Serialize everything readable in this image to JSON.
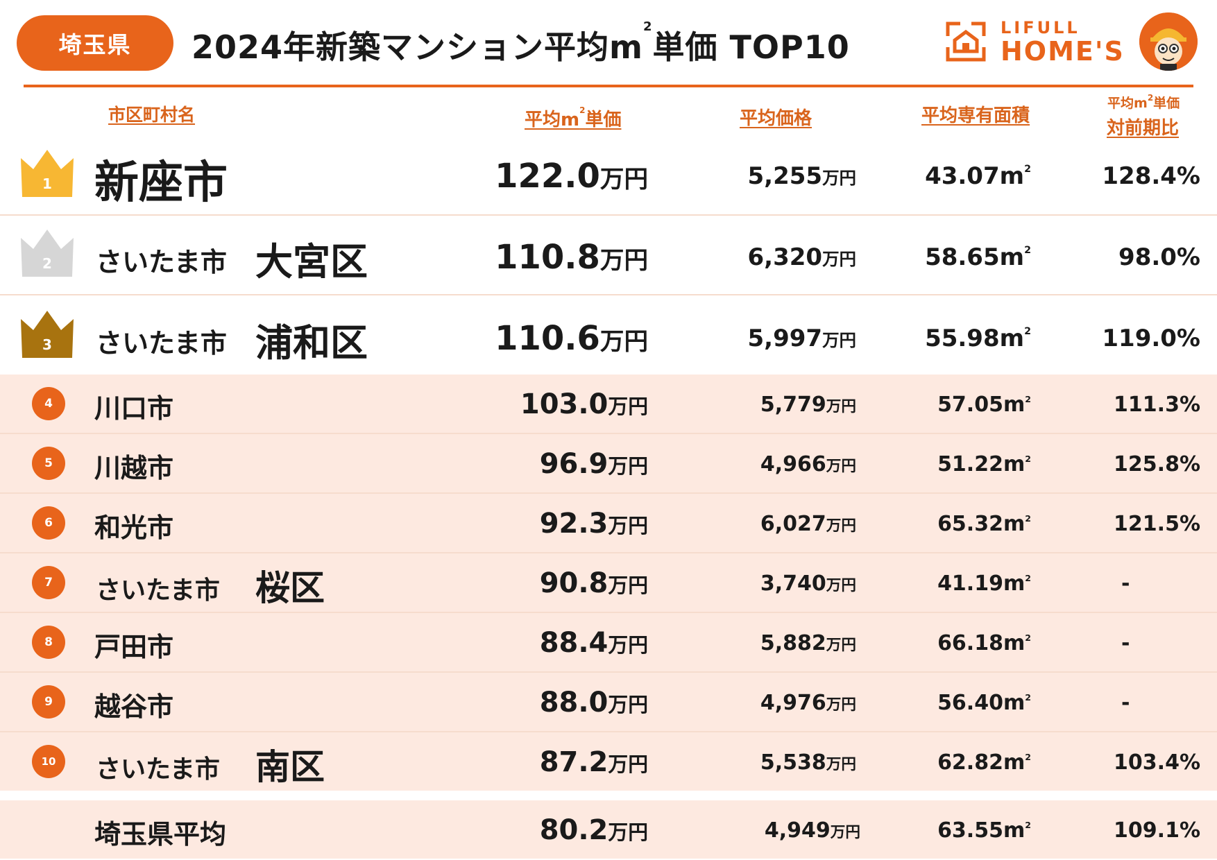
{
  "header": {
    "prefecture": "埼玉県",
    "title_main": "2024年新築マンション平均m",
    "title_sup": "2",
    "title_tail": "単価 TOP10",
    "logo_top": "LIFULL",
    "logo_bottom": "HOME'S"
  },
  "columns": {
    "name": "市区町村名",
    "price_per_sqm_pre": "平均m",
    "price_per_sqm_sup": "2",
    "price_per_sqm_post": "単価",
    "avg_price": "平均価格",
    "avg_area": "平均専有面積",
    "ratio_line1_pre": "平均m",
    "ratio_line1_sup": "2",
    "ratio_line1_post": "単価",
    "ratio_line2": "対前期比"
  },
  "units": {
    "man_yen": "万円",
    "sqm": "m",
    "sqm_sup": "2"
  },
  "rows": [
    {
      "rank": "1",
      "prefix": "",
      "name": "新座市",
      "unit_price": "122.0",
      "price": "5,255",
      "area": "43.07",
      "ratio": "128.4%"
    },
    {
      "rank": "2",
      "prefix": "さいたま市",
      "name": "大宮区",
      "unit_price": "110.8",
      "price": "6,320",
      "area": "58.65",
      "ratio": "98.0%"
    },
    {
      "rank": "3",
      "prefix": "さいたま市",
      "name": "浦和区",
      "unit_price": "110.6",
      "price": "5,997",
      "area": "55.98",
      "ratio": "119.0%"
    },
    {
      "rank": "4",
      "prefix": "",
      "name": "川口市",
      "unit_price": "103.0",
      "price": "5,779",
      "area": "57.05",
      "ratio": "111.3%"
    },
    {
      "rank": "5",
      "prefix": "",
      "name": "川越市",
      "unit_price": "96.9",
      "price": "4,966",
      "area": "51.22",
      "ratio": "125.8%"
    },
    {
      "rank": "6",
      "prefix": "",
      "name": "和光市",
      "unit_price": "92.3",
      "price": "6,027",
      "area": "65.32",
      "ratio": "121.5%"
    },
    {
      "rank": "7",
      "prefix": "さいたま市",
      "name": "桜区",
      "unit_price": "90.8",
      "price": "3,740",
      "area": "41.19",
      "ratio": "-"
    },
    {
      "rank": "8",
      "prefix": "",
      "name": "戸田市",
      "unit_price": "88.4",
      "price": "5,882",
      "area": "66.18",
      "ratio": "-"
    },
    {
      "rank": "9",
      "prefix": "",
      "name": "越谷市",
      "unit_price": "88.0",
      "price": "4,976",
      "area": "56.40",
      "ratio": "-"
    },
    {
      "rank": "10",
      "prefix": "さいたま市",
      "name": "南区",
      "unit_price": "87.2",
      "price": "5,538",
      "area": "62.82",
      "ratio": "103.4%"
    }
  ],
  "average": {
    "name": "埼玉県平均",
    "unit_price": "80.2",
    "price": "4,949",
    "area": "63.55",
    "ratio": "109.1%"
  },
  "colors": {
    "accent": "#e8641b",
    "header_text": "#d9641c",
    "pink_row": "#fde9e0",
    "gold": "#f7b733",
    "silver": "#d6d6d6",
    "bronze": "#a8730f"
  }
}
